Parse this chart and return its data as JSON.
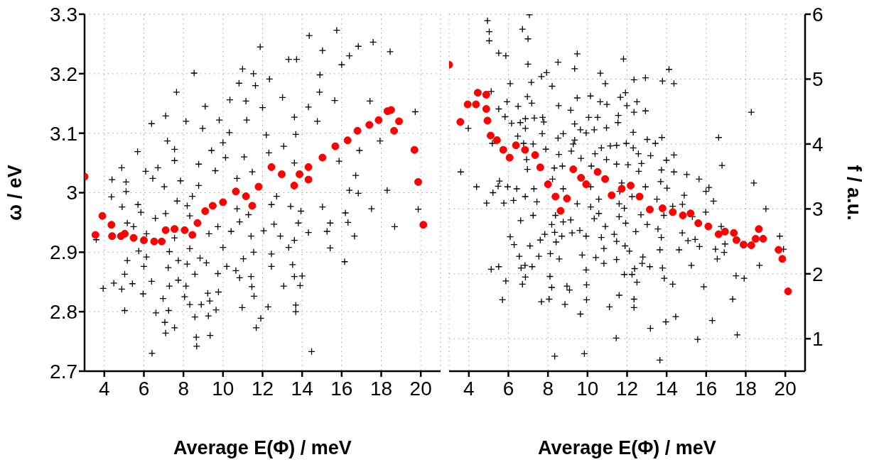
{
  "chart_data": [
    {
      "type": "scatter",
      "xlabel": "Average E(Φ) / meV",
      "ylabel": "ω / eV",
      "xlim": [
        3,
        21
      ],
      "xticks": [
        4,
        6,
        8,
        10,
        12,
        14,
        16,
        18,
        20
      ],
      "ylim": [
        2.7,
        3.3
      ],
      "yticks": [
        2.7,
        2.8,
        2.9,
        3.0,
        3.1,
        3.2,
        3.3
      ],
      "grid": true,
      "legend": false,
      "series": [
        {
          "color": "#000000",
          "marker": "cross",
          "x": [
            14.36,
            15.75,
            11.88,
            17.59,
            16.84,
            13.32,
            13.72,
            15.03,
            16.39,
            16.0,
            18.45,
            8.54,
            10.99,
            11.54,
            12.35,
            14.9,
            10.81,
            11.64,
            7.65,
            13.01,
            14.88,
            10.35,
            11.16,
            15.65,
            17.43,
            19.72,
            9.1,
            12.0,
            14.32,
            7.1,
            6.39,
            8.13,
            9.81,
            11.2,
            13.61,
            14.77,
            8.97,
            10.32,
            12.19,
            13.68,
            7.19,
            10.0,
            13.07,
            17.94,
            5.68,
            7.55,
            9.42,
            11.07,
            12.32,
            16.9,
            7.55,
            8.77,
            10.13,
            13.61,
            4.88,
            6.09,
            6.71,
            9.61,
            11.48,
            15.87,
            4.39,
            5.1,
            6.45,
            7.85,
            10.71,
            16.71,
            5.1,
            8.77,
            16.39,
            18.3,
            4.36,
            7.03,
            8.45,
            12.71,
            16.84,
            4.9,
            5.7,
            7.68,
            8.19,
            10.71,
            12.45,
            13.42,
            15.03,
            17.51,
            19.87,
            5.85,
            7.1,
            11.29,
            13.94,
            16.19,
            5.16,
            6.58,
            8.32,
            9.74,
            10.84,
            12.58,
            13.81,
            15.42,
            16.32,
            18.68,
            5.48,
            7.55,
            9.29,
            10.41,
            12.06,
            14.32,
            15.26,
            16.65,
            3.59,
            6.13,
            11.42,
            12.9,
            13.61,
            5.74,
            7.29,
            8.32,
            10.0,
            11.55,
            13.32,
            15.42,
            5.16,
            6.13,
            7.74,
            8.84,
            11.03,
            12.45,
            16.15,
            5.03,
            6.0,
            7.23,
            8.19,
            9.16,
            10.19,
            10.65,
            11.42,
            12.45,
            13.52,
            14.0,
            4.48,
            5.42,
            6.39,
            7.74,
            8.58,
            9.74,
            10.84,
            13.61,
            3.94,
            4.88,
            5.96,
            7.29,
            8.13,
            9.23,
            9.77,
            11.46,
            13.07,
            13.9,
            6.97,
            8.06,
            8.9,
            9.33,
            11.57,
            5.03,
            7.25,
            6.61,
            8.32,
            9.65,
            10.97,
            12.28,
            13.68,
            13.68,
            8.58,
            9.26,
            7.06,
            11.91,
            7.55,
            7.1,
            11.68,
            8.65,
            9.35,
            8.67,
            6.41,
            14.48
          ],
          "values": [
            3.264,
            3.273,
            3.245,
            3.253,
            3.246,
            3.224,
            3.224,
            3.239,
            3.23,
            3.215,
            3.237,
            3.201,
            3.208,
            3.2,
            3.191,
            3.198,
            3.184,
            3.18,
            3.169,
            3.16,
            3.169,
            3.156,
            3.154,
            3.155,
            3.154,
            3.136,
            3.145,
            3.143,
            3.144,
            3.129,
            3.116,
            3.12,
            3.122,
            3.122,
            3.127,
            3.12,
            3.108,
            3.101,
            3.097,
            3.098,
            3.087,
            3.084,
            3.078,
            3.087,
            3.069,
            3.073,
            3.071,
            3.06,
            3.067,
            3.071,
            3.054,
            3.048,
            3.059,
            3.05,
            3.042,
            3.036,
            3.042,
            3.037,
            3.035,
            3.053,
            3.022,
            3.018,
            3.024,
            3.02,
            3.024,
            3.029,
            3.002,
            3.012,
            3.004,
            3.004,
            2.993,
            3.01,
            2.994,
            2.994,
            2.999,
            2.976,
            2.98,
            2.986,
            2.978,
            2.973,
            2.98,
            2.977,
            2.976,
            2.973,
            2.972,
            2.967,
            2.965,
            2.963,
            2.969,
            2.966,
            2.949,
            2.957,
            2.961,
            2.943,
            2.951,
            2.947,
            2.949,
            2.949,
            2.95,
            2.943,
            2.943,
            2.924,
            2.931,
            2.935,
            2.936,
            2.933,
            2.935,
            2.927,
            2.921,
            2.931,
            2.927,
            2.927,
            2.92,
            2.902,
            2.901,
            2.906,
            2.908,
            2.9,
            2.908,
            2.907,
            2.886,
            2.892,
            2.886,
            2.89,
            2.889,
            2.897,
            2.884,
            2.863,
            2.876,
            2.874,
            2.88,
            2.882,
            2.876,
            2.869,
            2.859,
            2.876,
            2.879,
            2.86,
            2.848,
            2.847,
            2.851,
            2.853,
            2.863,
            2.864,
            2.857,
            2.859,
            2.839,
            2.838,
            2.83,
            2.843,
            2.843,
            2.831,
            2.833,
            2.842,
            2.843,
            2.844,
            2.822,
            2.825,
            2.812,
            2.818,
            2.826,
            2.802,
            2.802,
            2.798,
            2.812,
            2.803,
            2.807,
            2.808,
            2.811,
            2.8,
            2.791,
            2.793,
            2.782,
            2.789,
            2.773,
            2.764,
            2.773,
            2.757,
            2.76,
            2.742,
            2.73,
            2.733
          ]
        },
        {
          "color": "#ff0000",
          "marker": "circle",
          "x": [
            3.0,
            3.55,
            3.9,
            4.36,
            4.39,
            4.84,
            5.03,
            5.48,
            6.0,
            6.52,
            6.9,
            7.1,
            7.55,
            8.06,
            8.45,
            8.71,
            9.1,
            9.48,
            10.0,
            10.65,
            11.16,
            11.48,
            11.8,
            12.45,
            12.97,
            13.6,
            13.87,
            14.32,
            14.32,
            15.03,
            15.68,
            16.3,
            16.8,
            17.4,
            17.87,
            18.32,
            18.5,
            18.65,
            18.9,
            19.68,
            19.87,
            20.13
          ],
          "values": [
            3.027,
            2.929,
            2.961,
            2.946,
            2.927,
            2.927,
            2.931,
            2.924,
            2.92,
            2.918,
            2.918,
            2.937,
            2.939,
            2.937,
            2.929,
            2.949,
            2.969,
            2.978,
            2.984,
            3.002,
            2.994,
            2.978,
            3.01,
            3.043,
            3.031,
            3.012,
            3.031,
            3.022,
            3.043,
            3.059,
            3.078,
            3.088,
            3.104,
            3.114,
            3.122,
            3.137,
            3.139,
            3.104,
            3.12,
            3.072,
            3.018,
            2.946
          ]
        }
      ]
    },
    {
      "type": "scatter",
      "xlabel": "Average E(Φ) / meV",
      "y2label": "f / a.u.",
      "xlim": [
        3,
        21
      ],
      "xticks": [
        4,
        6,
        8,
        10,
        12,
        14,
        16,
        18,
        20
      ],
      "y2lim": [
        0.5,
        6
      ],
      "y2ticks": [
        1,
        2,
        3,
        4,
        5,
        6
      ],
      "grid": true,
      "legend": false,
      "series": [
        {
          "color": "#000000",
          "marker": "cross",
          "axis": "y2",
          "x": [
            4.94,
            5.03,
            5.03,
            6.71,
            6.99,
            7.06,
            5.51,
            5.87,
            6.99,
            9.48,
            8.51,
            9.35,
            11.82,
            14.12,
            7.93,
            7.67,
            10.65,
            6.09,
            7.16,
            8.21,
            10.9,
            12.35,
            12.93,
            13.79,
            14.37,
            5.13,
            6.96,
            9.48,
            10.15,
            11.66,
            11.92,
            5.93,
            6.49,
            7.18,
            8.54,
            10.64,
            10.98,
            11.99,
            12.5,
            5.51,
            9.15,
            12.35,
            12.93,
            18.28,
            3.97,
            5.83,
            6.86,
            7.31,
            7.73,
            10.06,
            10.51,
            11.56,
            6.16,
            6.6,
            7.79,
            9.35,
            10.96,
            11.54,
            6.86,
            9.64,
            10.34,
            7.71,
            8.77,
            9.93,
            12.31,
            6.47,
            8.51,
            9.35,
            13.02,
            13.76,
            16.63,
            5.19,
            6.77,
            7.25,
            9.28,
            11.96,
            13.43,
            10.7,
            11.15,
            11.47,
            7.89,
            12.31,
            8.55,
            9.18,
            10.38,
            12.57,
            13.19,
            14.37,
            6.92,
            9.67,
            10.96,
            11.47,
            12.05,
            12.73,
            13.99,
            16.8,
            8.32,
            8.73,
            10.19,
            12.59,
            13.74,
            3.59,
            6.96,
            14.37,
            15.02,
            15.64,
            5.55,
            8.23,
            11.73,
            13.7,
            18.41,
            4.39,
            5.48,
            5.96,
            6.42,
            7.29,
            8.77,
            10.16,
            11.63,
            12.93,
            14.02,
            16.14,
            5.22,
            6.85,
            10.57,
            12.25,
            14.89,
            15.99,
            4.9,
            5.77,
            6.26,
            7.44,
            9.48,
            11.6,
            13.51,
            14.8,
            16.37,
            10.16,
            11.86,
            14.31,
            19.02,
            7.25,
            8.38,
            10.57,
            12.7,
            15.98,
            6.62,
            9.15,
            10.34,
            11.6,
            13.86,
            15.3,
            8.19,
            8.77,
            11.93,
            13.02,
            16.76,
            10.9,
            13.56,
            8.34,
            9.22,
            9.61,
            11.35,
            12.44,
            14.79,
            7.84,
            6.09,
            8.7,
            9.93,
            10.7,
            13.73,
            15.08,
            15.44,
            19.72,
            6.29,
            7.09,
            7.61,
            8.41,
            10.83,
            11.47,
            11.9,
            13.66,
            15.66,
            16.95,
            6.55,
            7.54,
            8.12,
            8.57,
            9.73,
            10.42,
            11.47,
            12.12,
            12.8,
            14.63,
            16.47,
            16.91,
            16.56,
            19.91,
            5.13,
            5.51,
            6.64,
            6.84,
            7.2,
            10.83,
            12.38,
            12.76,
            13.15,
            13.79,
            15.25,
            18.69,
            5.87,
            6.86,
            8.1,
            9.93,
            11.86,
            12.25,
            13.88,
            17.51,
            17.92,
            6.71,
            8.19,
            8.96,
            9.95,
            12.5,
            14.31,
            15.88,
            9.09,
            5.7,
            7.67,
            8.06,
            8.86,
            9.95,
            11.6,
            12.35,
            12.35,
            11.11,
            17.34,
            9.64,
            13.96,
            14.46,
            16.31,
            13.18,
            11.45,
            17.57,
            15.57,
            8.34,
            9.84,
            13.66
          ],
          "values": [
            5.9,
            5.73,
            5.59,
            5.77,
            5.62,
            5.99,
            5.4,
            5.36,
            5.23,
            5.39,
            5.26,
            5.16,
            5.31,
            5.15,
            5.1,
            5.04,
            5.09,
            4.93,
            4.95,
            4.89,
            4.93,
            4.99,
            5.02,
            4.97,
            4.93,
            4.81,
            4.73,
            4.71,
            4.74,
            4.72,
            4.79,
            4.65,
            4.58,
            4.63,
            4.59,
            4.65,
            4.61,
            4.59,
            4.65,
            4.54,
            4.52,
            4.49,
            4.51,
            4.49,
            4.24,
            4.42,
            4.39,
            4.4,
            4.41,
            4.41,
            4.41,
            4.44,
            4.32,
            4.33,
            4.34,
            4.31,
            4.25,
            4.33,
            4.24,
            4.22,
            4.22,
            4.16,
            4.16,
            4.17,
            4.18,
            4.12,
            4.09,
            4.06,
            4.07,
            4.1,
            4.1,
            4.01,
            4.01,
            4.0,
            4.0,
            4.01,
            4.01,
            3.94,
            3.97,
            3.98,
            3.92,
            3.94,
            3.84,
            3.89,
            3.85,
            3.85,
            3.82,
            3.83,
            3.76,
            3.78,
            3.76,
            3.69,
            3.68,
            3.7,
            3.75,
            3.67,
            3.63,
            3.66,
            3.66,
            3.58,
            3.6,
            3.57,
            3.61,
            3.57,
            3.53,
            3.46,
            3.43,
            3.46,
            3.4,
            3.42,
            3.4,
            3.34,
            3.35,
            3.34,
            3.31,
            3.31,
            3.31,
            3.34,
            3.27,
            3.34,
            3.32,
            3.33,
            3.25,
            3.19,
            3.15,
            3.19,
            3.21,
            3.27,
            3.09,
            3.09,
            3.13,
            3.11,
            3.08,
            3.08,
            3.15,
            3.07,
            3.12,
            3.03,
            3.01,
            3.04,
            3.0,
            2.9,
            2.9,
            2.93,
            2.91,
            2.95,
            2.82,
            2.83,
            2.85,
            2.88,
            2.9,
            2.88,
            2.76,
            2.8,
            2.78,
            2.76,
            2.73,
            2.73,
            2.69,
            2.64,
            2.63,
            2.67,
            2.61,
            2.65,
            2.63,
            2.61,
            2.57,
            2.58,
            2.58,
            2.56,
            2.56,
            2.51,
            2.53,
            2.58,
            2.45,
            2.43,
            2.52,
            2.49,
            2.39,
            2.5,
            2.43,
            2.37,
            2.42,
            2.46,
            2.27,
            2.27,
            2.31,
            2.23,
            2.29,
            2.25,
            2.22,
            2.35,
            2.26,
            2.37,
            2.38,
            2.33,
            2.23,
            2.38,
            2.07,
            2.11,
            2.09,
            2.13,
            2.11,
            2.16,
            2.08,
            2.16,
            2.11,
            2.09,
            2.13,
            2.13,
            1.89,
            1.95,
            1.96,
            2.06,
            1.99,
            1.99,
            1.93,
            1.97,
            1.93,
            1.84,
            1.79,
            1.81,
            1.83,
            1.87,
            1.84,
            1.8,
            1.75,
            1.6,
            1.57,
            1.61,
            1.53,
            1.6,
            1.67,
            1.61,
            1.48,
            1.49,
            1.61,
            1.38,
            1.26,
            1.34,
            1.28,
            1.16,
            1.01,
            1.06,
            0.99,
            0.73,
            0.77,
            0.67
          ]
        },
        {
          "color": "#ff0000",
          "marker": "circle",
          "axis": "y2",
          "x": [
            3.0,
            3.57,
            3.94,
            4.36,
            4.45,
            4.88,
            4.88,
            4.94,
            5.1,
            5.42,
            5.74,
            6.06,
            6.38,
            6.84,
            7.35,
            7.61,
            8.0,
            8.38,
            8.64,
            8.96,
            9.28,
            9.67,
            9.93,
            10.51,
            10.89,
            11.22,
            11.73,
            12.18,
            12.63,
            13.15,
            13.79,
            14.31,
            14.82,
            15.21,
            15.6,
            16.11,
            16.63,
            16.95,
            17.4,
            17.53,
            17.89,
            18.28,
            18.5,
            18.66,
            18.88,
            19.66,
            19.85,
            20.14
          ],
          "values": [
            5.22,
            4.34,
            4.61,
            4.61,
            4.79,
            4.76,
            4.54,
            4.36,
            4.13,
            4.06,
            3.91,
            3.79,
            3.98,
            3.91,
            3.83,
            3.64,
            3.38,
            3.19,
            2.97,
            3.16,
            3.61,
            3.48,
            3.38,
            3.57,
            3.46,
            3.21,
            3.31,
            3.36,
            3.19,
            2.99,
            3.01,
            2.95,
            2.9,
            2.93,
            2.78,
            2.73,
            2.61,
            2.65,
            2.63,
            2.52,
            2.45,
            2.44,
            2.54,
            2.69,
            2.54,
            2.37,
            2.23,
            1.73
          ]
        }
      ]
    }
  ]
}
